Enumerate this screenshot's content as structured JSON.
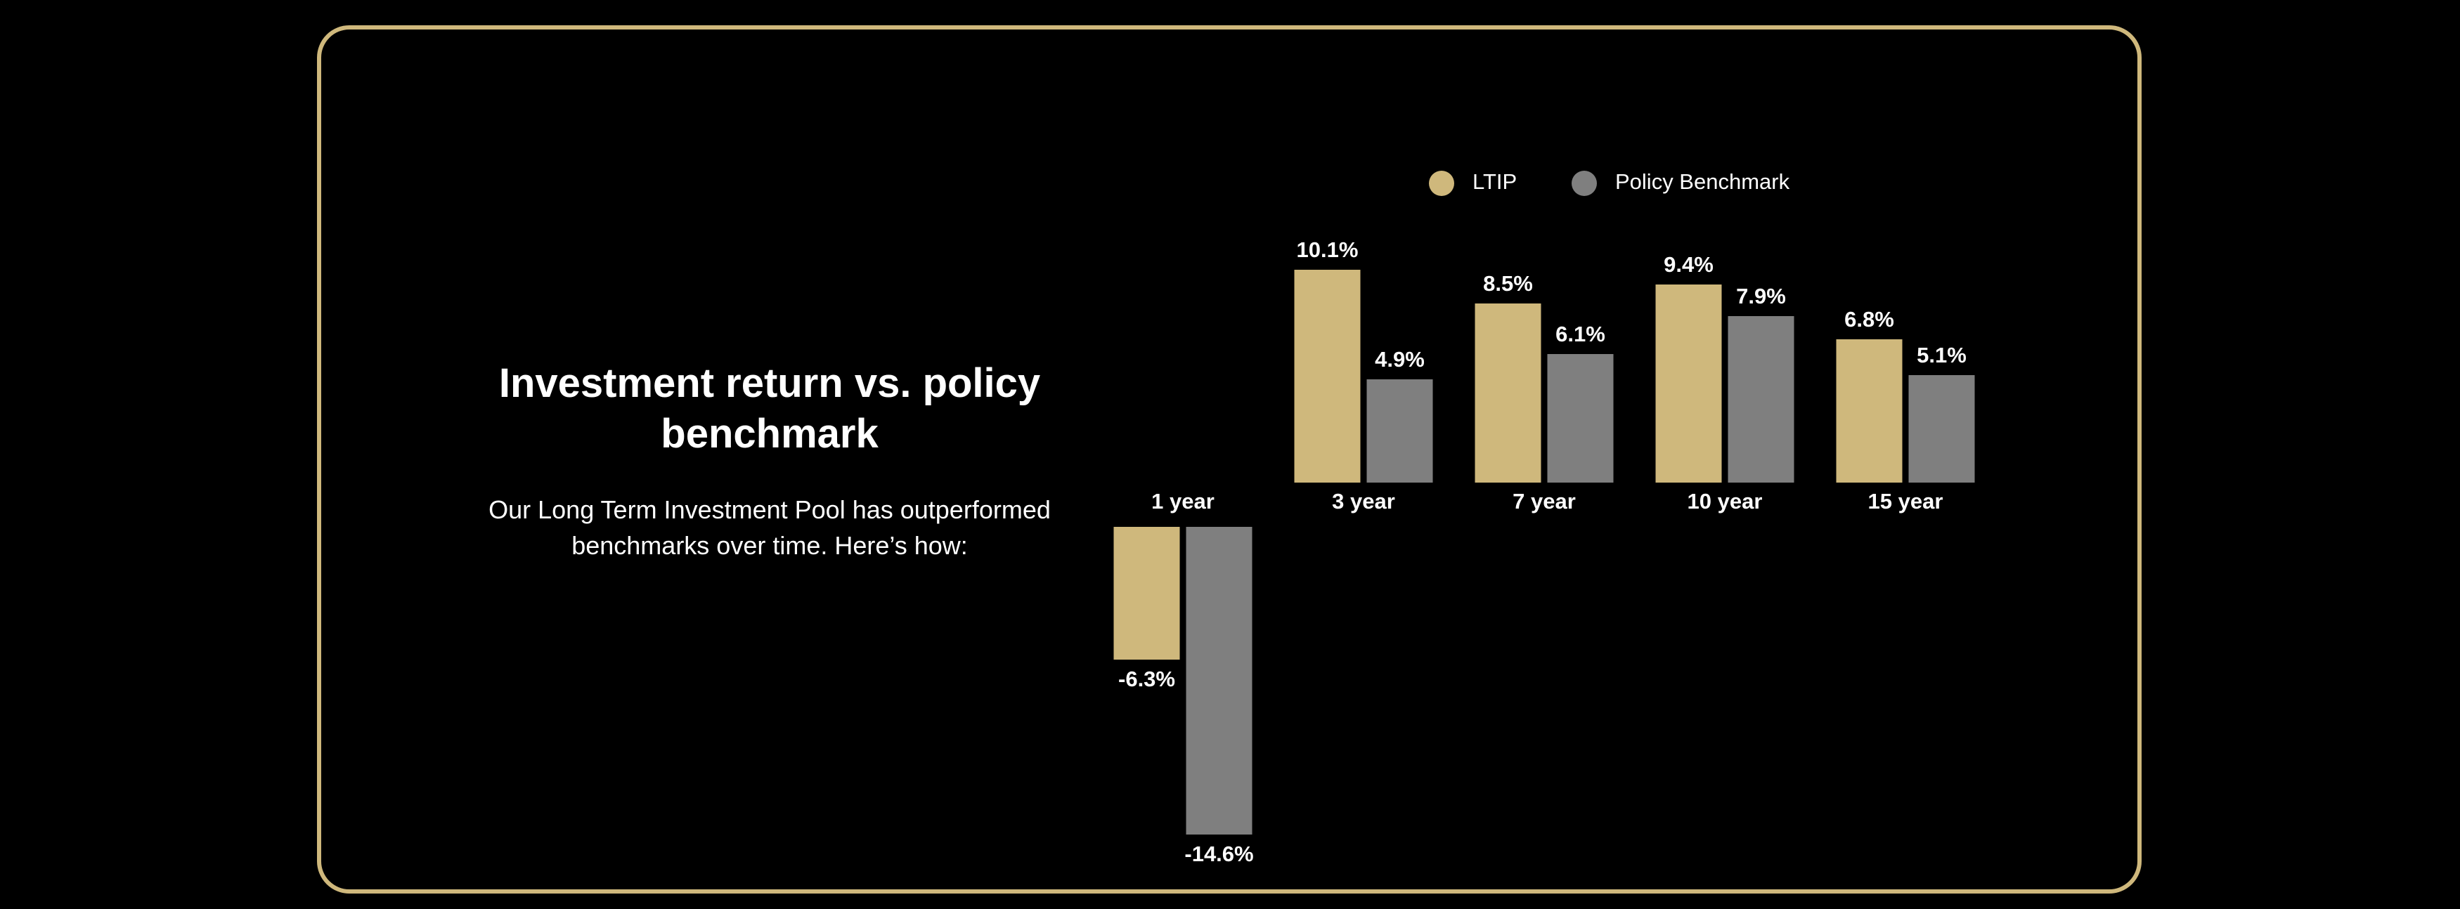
{
  "heading": "Investment return vs. policy benchmark",
  "description": "Our Long Term Investment Pool has outperformed benchmarks over time. Here’s how:",
  "chart_data": {
    "type": "bar",
    "categories": [
      "1 year",
      "3 year",
      "7 year",
      "10 year",
      "15 year"
    ],
    "series": [
      {
        "name": "LTIP",
        "color": "#cfb87c",
        "values": [
          -6.3,
          10.1,
          8.5,
          9.4,
          6.8
        ],
        "value_labels": [
          "-6.3%",
          "10.1%",
          "8.5%",
          "9.4%",
          "6.8%"
        ]
      },
      {
        "name": "Policy Benchmark",
        "color": "#7f7f7f",
        "values": [
          -14.6,
          4.9,
          6.1,
          7.9,
          5.1
        ],
        "value_labels": [
          "-14.6%",
          "4.9%",
          "6.1%",
          "7.9%",
          "5.1%"
        ]
      }
    ]
  }
}
